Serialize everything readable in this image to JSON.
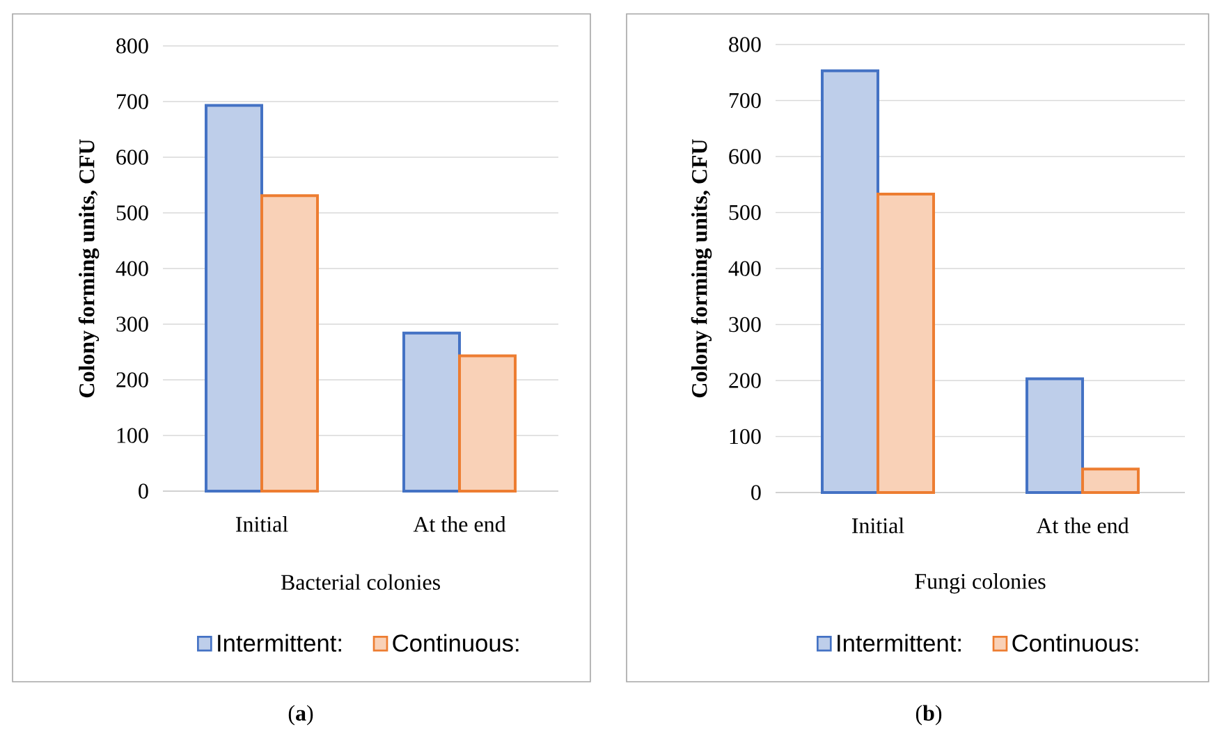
{
  "chart_data": [
    {
      "type": "bar",
      "categories": [
        "Initial",
        "At the end"
      ],
      "xlabel": "Bacterial colonies",
      "ylabel": "Colony forming units, CFU",
      "ylim": [
        0,
        800
      ],
      "yticks": [
        0,
        100,
        200,
        300,
        400,
        500,
        600,
        700,
        800
      ],
      "grid": "y",
      "legend": "bottom",
      "series": [
        {
          "name": "Intermittent:",
          "color": "#4472c4",
          "values": [
            693,
            284
          ]
        },
        {
          "name": "Continuous:",
          "color": "#ed7d31",
          "values": [
            531,
            243
          ]
        }
      ],
      "annotations": [
        "(**a**)"
      ]
    },
    {
      "type": "bar",
      "categories": [
        "Initial",
        "At the end"
      ],
      "xlabel": "Fungi colonies",
      "ylabel": "Colony forming units, CFU",
      "ylim": [
        0,
        800
      ],
      "yticks": [
        0,
        100,
        200,
        300,
        400,
        500,
        600,
        700,
        800
      ],
      "grid": "y",
      "legend": "bottom",
      "series": [
        {
          "name": "Intermittent:",
          "color": "#4472c4",
          "values": [
            753,
            203
          ]
        },
        {
          "name": "Continuous:",
          "color": "#ed7d31",
          "values": [
            533,
            42
          ]
        }
      ],
      "annotations": [
        "(**b**)"
      ]
    }
  ]
}
